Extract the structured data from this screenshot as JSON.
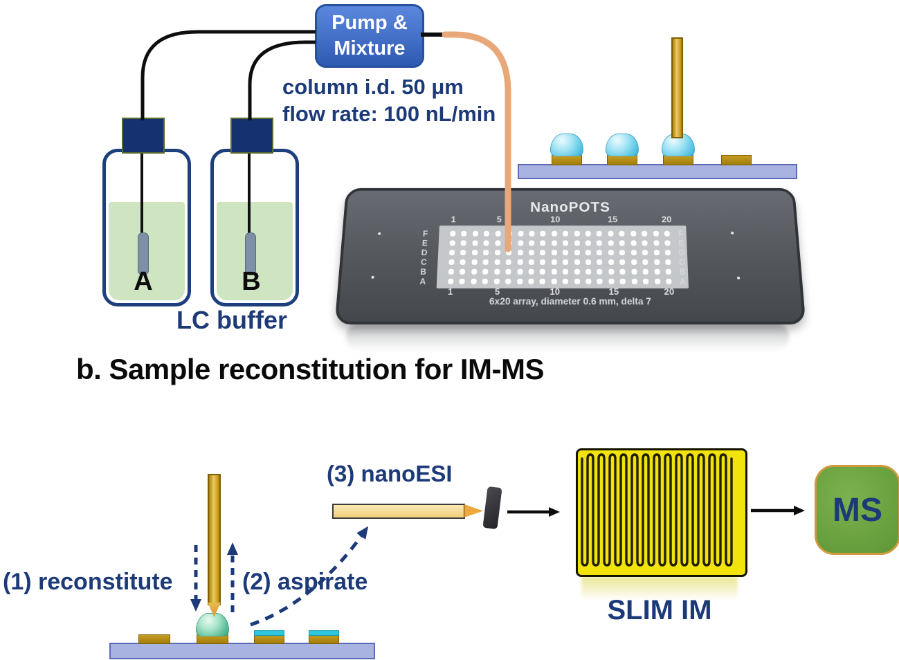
{
  "panel_a": {
    "pump": {
      "line1": "Pump &",
      "line2": "Mixture"
    },
    "specs": {
      "line1": "column i.d. 50 μm",
      "line2": "flow rate: 100 nL/min"
    },
    "bottle_a_label": "A",
    "bottle_b_label": "B",
    "lc_buffer_label": "LC buffer",
    "chip": {
      "title": "NanoPOTS",
      "column_ticks": [
        "1",
        "5",
        "10",
        "15",
        "20"
      ],
      "row_labels": [
        "F",
        "E",
        "D",
        "C",
        "B",
        "A"
      ],
      "caption": "6x20 array, diameter 0.6 mm, delta 7",
      "rows": 6,
      "cols": 20
    }
  },
  "panel_b": {
    "title": "b. Sample reconstitution for IM-MS",
    "step1_label": "(1) reconstitute",
    "step2_label": "(2) aspirate",
    "step3_label": "(3) nanoESI",
    "slim_label": "SLIM IM",
    "ms_label": "MS"
  },
  "colors": {
    "navy": "#1c3a78",
    "liquid": "#cfe5c2",
    "platform": "#a9b3e2",
    "gold": "#b5860d",
    "orange_tube": "#e9a87a",
    "slim": "#f2e30c",
    "ms": "#5f9636",
    "droplet_cyan": "#7fd8ef",
    "droplet_green": "#79d3ae"
  }
}
